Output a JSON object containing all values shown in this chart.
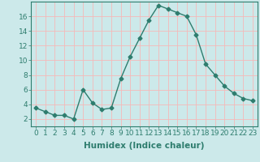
{
  "x": [
    0,
    1,
    2,
    3,
    4,
    5,
    6,
    7,
    8,
    9,
    10,
    11,
    12,
    13,
    14,
    15,
    16,
    17,
    18,
    19,
    20,
    21,
    22,
    23
  ],
  "y": [
    3.5,
    3.0,
    2.5,
    2.5,
    2.0,
    6.0,
    4.2,
    3.3,
    3.5,
    7.5,
    10.5,
    13.0,
    15.5,
    17.5,
    17.0,
    16.5,
    16.0,
    13.5,
    9.5,
    8.0,
    6.5,
    5.5,
    4.8,
    4.5
  ],
  "xlabel": "Humidex (Indice chaleur)",
  "xlim": [
    -0.5,
    23.5
  ],
  "ylim": [
    1,
    18
  ],
  "yticks": [
    2,
    4,
    6,
    8,
    10,
    12,
    14,
    16
  ],
  "xticks": [
    0,
    1,
    2,
    3,
    4,
    5,
    6,
    7,
    8,
    9,
    10,
    11,
    12,
    13,
    14,
    15,
    16,
    17,
    18,
    19,
    20,
    21,
    22,
    23
  ],
  "line_color": "#2e7d6e",
  "marker": "D",
  "marker_size": 2.5,
  "bg_color": "#cce9ea",
  "grid_color": "#f5b8b8",
  "xlabel_fontsize": 7.5,
  "tick_fontsize": 6.5,
  "linewidth": 1.0
}
